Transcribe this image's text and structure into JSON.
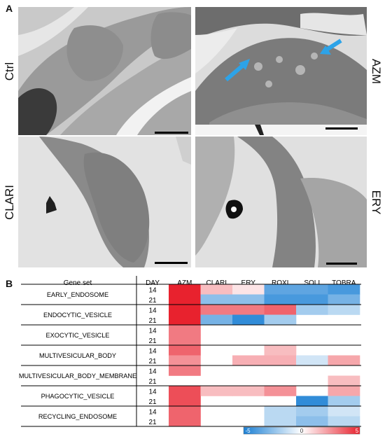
{
  "panel_a": {
    "letter": "A",
    "images": [
      {
        "label": "Ctrl"
      },
      {
        "label": "AZM"
      },
      {
        "label": "CLARI"
      },
      {
        "label": "ERY"
      }
    ],
    "arrow_color": "#2da3e8"
  },
  "panel_b": {
    "letter": "B",
    "header": {
      "gene_set": "Gene set",
      "day": "DAY"
    },
    "colorbar": {
      "min_label": "-5",
      "mid_label": "0",
      "max_label": "5",
      "min_color": "#1a7fd4",
      "max_color": "#e8222e"
    }
  },
  "chart_data": {
    "type": "heatmap",
    "columns": [
      "AZM",
      "CLARI",
      "ERY",
      "ROXI",
      "SOLI",
      "TOBRA"
    ],
    "value_range": [
      -5,
      5
    ],
    "rows": [
      {
        "gene_set": "EARLY_ENDOSOME",
        "day": "14",
        "values": [
          5.0,
          1.5,
          0.6,
          -3.5,
          -3.5,
          -4.0
        ]
      },
      {
        "gene_set": "EARLY_ENDOSOME",
        "day": "21",
        "values": [
          5.0,
          -2.5,
          -2.5,
          -4.0,
          -4.0,
          -3.0
        ]
      },
      {
        "gene_set": "ENDOCYTIC_VESICLE",
        "day": "14",
        "values": [
          5.0,
          3.0,
          3.0,
          3.5,
          -2.0,
          -1.5
        ]
      },
      {
        "gene_set": "ENDOCYTIC_VESICLE",
        "day": "21",
        "values": [
          5.0,
          -3.0,
          -4.5,
          -2.0,
          null,
          null
        ]
      },
      {
        "gene_set": "EXOCYTIC_VESICLE",
        "day": "14",
        "values": [
          3.0,
          null,
          null,
          null,
          null,
          null
        ]
      },
      {
        "gene_set": "EXOCYTIC_VESICLE",
        "day": "21",
        "values": [
          3.0,
          null,
          null,
          null,
          null,
          null
        ]
      },
      {
        "gene_set": "MULTIVESICULAR_BODY",
        "day": "14",
        "values": [
          3.5,
          null,
          null,
          1.5,
          null,
          null
        ]
      },
      {
        "gene_set": "MULTIVESICULAR_BODY",
        "day": "21",
        "values": [
          2.5,
          null,
          1.8,
          1.8,
          -1.0,
          2.0
        ]
      },
      {
        "gene_set": "MULTIVESICULAR_BODY_MEMBRANE",
        "day": "14",
        "values": [
          3.0,
          null,
          null,
          null,
          null,
          null
        ]
      },
      {
        "gene_set": "MULTIVESICULAR_BODY_MEMBRANE",
        "day": "21",
        "values": [
          null,
          null,
          null,
          null,
          null,
          1.5
        ]
      },
      {
        "gene_set": "PHAGOCYTIC_VESICLE",
        "day": "14",
        "values": [
          4.0,
          1.5,
          1.5,
          2.5,
          null,
          2.0
        ]
      },
      {
        "gene_set": "PHAGOCYTIC_VESICLE",
        "day": "21",
        "values": [
          4.0,
          null,
          null,
          null,
          -4.5,
          -2.0
        ]
      },
      {
        "gene_set": "RECYCLING_ENDOSOME",
        "day": "14",
        "values": [
          3.5,
          null,
          null,
          -1.5,
          -2.0,
          -1.0
        ]
      },
      {
        "gene_set": "RECYCLING_ENDOSOME",
        "day": "21",
        "values": [
          3.5,
          null,
          null,
          -1.5,
          -2.5,
          -1.5
        ]
      }
    ]
  }
}
